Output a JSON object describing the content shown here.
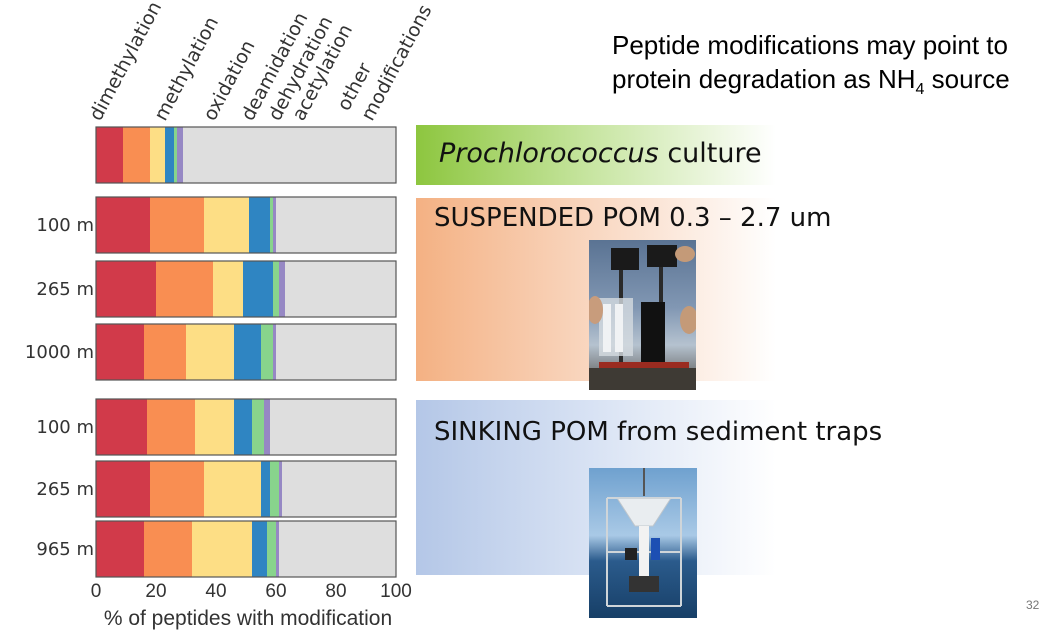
{
  "slide": {
    "title_line1": "Peptide modifications may point to",
    "title_line2_pre": "protein degradation as NH",
    "title_line2_sub": "4",
    "title_line2_post": " source",
    "page_number": "32"
  },
  "bands": [
    {
      "label_italic": "Prochlorococcus",
      "label_rest": " culture",
      "color": "#8dc63f"
    },
    {
      "label_italic": "",
      "label_rest": "SUSPENDED POM 0.3 – 2.7 um",
      "color": "#f4b183"
    },
    {
      "label_italic": "",
      "label_rest": "SINKING POM from sediment traps",
      "color": "#b4c7e7"
    }
  ],
  "photos": [
    {
      "name": "pump-photo"
    },
    {
      "name": "sediment-trap-photo"
    }
  ],
  "chart_data": {
    "type": "bar",
    "orientation": "horizontal",
    "stacked": true,
    "xlabel": "% of peptides with modification",
    "xlim": [
      0,
      100
    ],
    "xticks": [
      0,
      20,
      40,
      60,
      80,
      100
    ],
    "categories": [
      "",
      "100 m",
      "265 m",
      "1000 m",
      "100 m",
      "265 m",
      "965 m"
    ],
    "series": [
      {
        "name": "dimethylation",
        "color": "#d13a4a",
        "values": [
          9,
          18,
          20,
          16,
          17,
          18,
          16
        ]
      },
      {
        "name": "methylation",
        "color": "#f98e52",
        "values": [
          9,
          18,
          19,
          14,
          16,
          18,
          16
        ]
      },
      {
        "name": "oxidation",
        "color": "#fdde85",
        "values": [
          5,
          15,
          10,
          16,
          13,
          19,
          20
        ]
      },
      {
        "name": "deamidation",
        "color": "#2f85c2",
        "values": [
          3,
          7,
          10,
          9,
          6,
          3,
          5
        ]
      },
      {
        "name": "dehydration",
        "color": "#88d48c",
        "values": [
          1,
          1,
          2,
          4,
          4,
          3,
          3
        ]
      },
      {
        "name": "acetylation",
        "color": "#9688c4",
        "values": [
          2,
          1,
          2,
          1,
          2,
          1,
          1
        ]
      },
      {
        "name": "other modifications",
        "color": "#dedede",
        "values": [
          71,
          40,
          37,
          40,
          42,
          38,
          39
        ]
      }
    ]
  }
}
